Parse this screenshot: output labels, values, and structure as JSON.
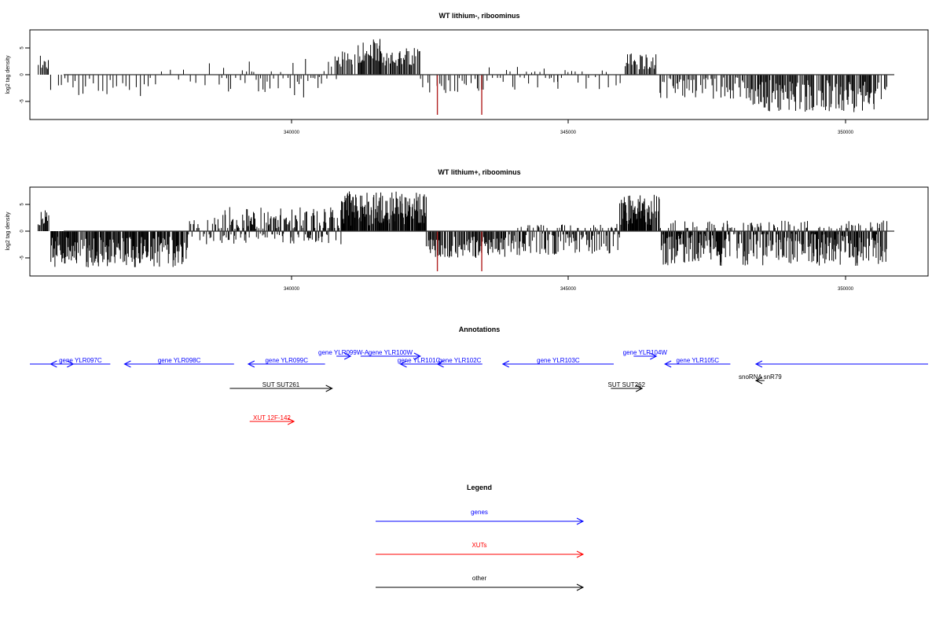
{
  "chart_data": [
    {
      "type": "bar",
      "title": "WT lithium-, riboominus",
      "ylabel": "log2 tag density",
      "xlim": [
        335936,
        351726
      ],
      "ylim": [
        -8,
        8
      ],
      "x_ticks": [
        340000,
        345000,
        350000
      ],
      "y_ticks": [
        5,
        0,
        -5
      ],
      "baseline": 0,
      "bar_color": "#000000",
      "highlight_color": "#b22222",
      "highlights": [
        {
          "x": 343100,
          "value": -7.5
        },
        {
          "x": 343880,
          "value": -7.5
        }
      ],
      "segments": [
        {
          "start": 336080,
          "end": 336270,
          "step": 20,
          "min": 1.0,
          "max": 4.0,
          "seed": 11
        },
        {
          "start": 336300,
          "end": 338000,
          "step": 60,
          "min": -4.2,
          "max": -0.5,
          "seed": 12
        },
        {
          "start": 338000,
          "end": 339300,
          "step": 120,
          "min": -2.0,
          "max": 2.2,
          "seed": 13
        },
        {
          "start": 339300,
          "end": 341300,
          "step": 40,
          "min": -4.3,
          "max": 3.5,
          "seed": 14
        },
        {
          "start": 341300,
          "end": 341700,
          "step": 20,
          "min": 1.5,
          "max": 4.5,
          "seed": 15
        },
        {
          "start": 341700,
          "end": 342100,
          "step": 15,
          "min": 2.0,
          "max": 6.8,
          "seed": 16
        },
        {
          "start": 342100,
          "end": 342800,
          "step": 18,
          "min": 1.5,
          "max": 5.0,
          "seed": 17
        },
        {
          "start": 342800,
          "end": 343800,
          "step": 40,
          "min": -3.5,
          "max": -0.5,
          "seed": 18
        },
        {
          "start": 343800,
          "end": 345200,
          "step": 50,
          "min": -3.0,
          "max": 1.5,
          "seed": 19
        },
        {
          "start": 345200,
          "end": 346300,
          "step": 60,
          "min": -3.0,
          "max": 1.0,
          "seed": 20
        },
        {
          "start": 346400,
          "end": 346950,
          "step": 20,
          "min": 1.0,
          "max": 4.2,
          "seed": 21
        },
        {
          "start": 347000,
          "end": 348600,
          "step": 25,
          "min": -4.5,
          "max": -0.5,
          "seed": 22
        },
        {
          "start": 348600,
          "end": 351000,
          "step": 15,
          "min": -7.0,
          "max": -1.0,
          "seed": 23
        }
      ]
    },
    {
      "type": "bar",
      "title": "WT lithium+, riboominus",
      "ylabel": "log2 tag density",
      "xlim": [
        335936,
        351726
      ],
      "ylim": [
        -8,
        8
      ],
      "x_ticks": [
        340000,
        345000,
        350000
      ],
      "y_ticks": [
        5,
        0,
        -5
      ],
      "baseline": 0,
      "bar_color": "#000000",
      "highlight_color": "#b22222",
      "highlights": [
        {
          "x": 343100,
          "value": -7.5
        },
        {
          "x": 343880,
          "value": -7.5
        }
      ],
      "segments": [
        {
          "start": 336080,
          "end": 336270,
          "step": 15,
          "min": 1.0,
          "max": 4.0,
          "seed": 31
        },
        {
          "start": 336300,
          "end": 338700,
          "step": 12,
          "min": -6.8,
          "max": -1.0,
          "seed": 32
        },
        {
          "start": 338700,
          "end": 339300,
          "step": 20,
          "min": -2.5,
          "max": 2.5,
          "seed": 33
        },
        {
          "start": 339300,
          "end": 341400,
          "step": 12,
          "min": -2.5,
          "max": 4.5,
          "seed": 34
        },
        {
          "start": 341400,
          "end": 342900,
          "step": 10,
          "min": 1.0,
          "max": 7.5,
          "seed": 35
        },
        {
          "start": 342900,
          "end": 344300,
          "step": 15,
          "min": -5.0,
          "max": -1.0,
          "seed": 36
        },
        {
          "start": 344300,
          "end": 346300,
          "step": 15,
          "min": -4.5,
          "max": 1.5,
          "seed": 37
        },
        {
          "start": 346300,
          "end": 347000,
          "step": 10,
          "min": 1.0,
          "max": 6.8,
          "seed": 38
        },
        {
          "start": 347000,
          "end": 351000,
          "step": 10,
          "min": -6.5,
          "max": 2.0,
          "seed": 39
        }
      ]
    }
  ],
  "annotations": {
    "title": "Annotations",
    "genes_color": "#0000ff",
    "xuts_color": "#ff0000",
    "other_color": "#000000",
    "items": [
      {
        "label": "",
        "kind": "gene",
        "strand": "+",
        "start": 335936,
        "end": 336700,
        "row": 0
      },
      {
        "label": "gene YLR097C",
        "kind": "gene",
        "strand": "-",
        "start": 336300,
        "end": 337350,
        "row": 0
      },
      {
        "label": "gene YLR098C",
        "kind": "gene",
        "strand": "-",
        "start": 337600,
        "end": 339525,
        "row": 0
      },
      {
        "label": "gene YLR099C",
        "kind": "gene",
        "strand": "-",
        "start": 339775,
        "end": 341125,
        "row": 0
      },
      {
        "label": "gene YLR099W-A",
        "kind": "gene",
        "strand": "+",
        "start": 341325,
        "end": 341575,
        "row": 1
      },
      {
        "label": "gene YLR100W",
        "kind": "gene",
        "strand": "+",
        "start": 341750,
        "end": 342800,
        "row": 1
      },
      {
        "label": "gene YLR101C",
        "kind": "gene",
        "strand": "-",
        "start": 342450,
        "end": 343100,
        "row": 0
      },
      {
        "label": "gene YLR102C",
        "kind": "gene",
        "strand": "-",
        "start": 343100,
        "end": 343890,
        "row": 0
      },
      {
        "label": "gene YLR103C",
        "kind": "gene",
        "strand": "-",
        "start": 344250,
        "end": 346200,
        "row": 0
      },
      {
        "label": "gene YLR104W",
        "kind": "gene",
        "strand": "+",
        "start": 346550,
        "end": 346950,
        "row": 1
      },
      {
        "label": "gene YLR105C",
        "kind": "gene",
        "strand": "-",
        "start": 347100,
        "end": 348250,
        "row": 0
      },
      {
        "label": "",
        "kind": "gene",
        "strand": "-",
        "start": 348700,
        "end": 351726,
        "row": 0
      },
      {
        "label": "SUT SUT261",
        "kind": "other",
        "strand": "+",
        "start": 339450,
        "end": 341250,
        "row": 3
      },
      {
        "label": "SUT SUT262",
        "kind": "other",
        "strand": "+",
        "start": 346150,
        "end": 346700,
        "row": 3
      },
      {
        "label": "snoRNA snR79",
        "kind": "other",
        "strand": "-",
        "start": 348700,
        "end": 348850,
        "row": 2
      },
      {
        "label": "XUT 12F-142",
        "kind": "xut",
        "strand": "+",
        "start": 339800,
        "end": 340580,
        "row": 5
      }
    ]
  },
  "legend": {
    "title": "Legend",
    "items": [
      {
        "label": "genes",
        "color": "#0000ff"
      },
      {
        "label": "XUTs",
        "color": "#ff0000"
      },
      {
        "label": "other",
        "color": "#000000"
      }
    ]
  }
}
